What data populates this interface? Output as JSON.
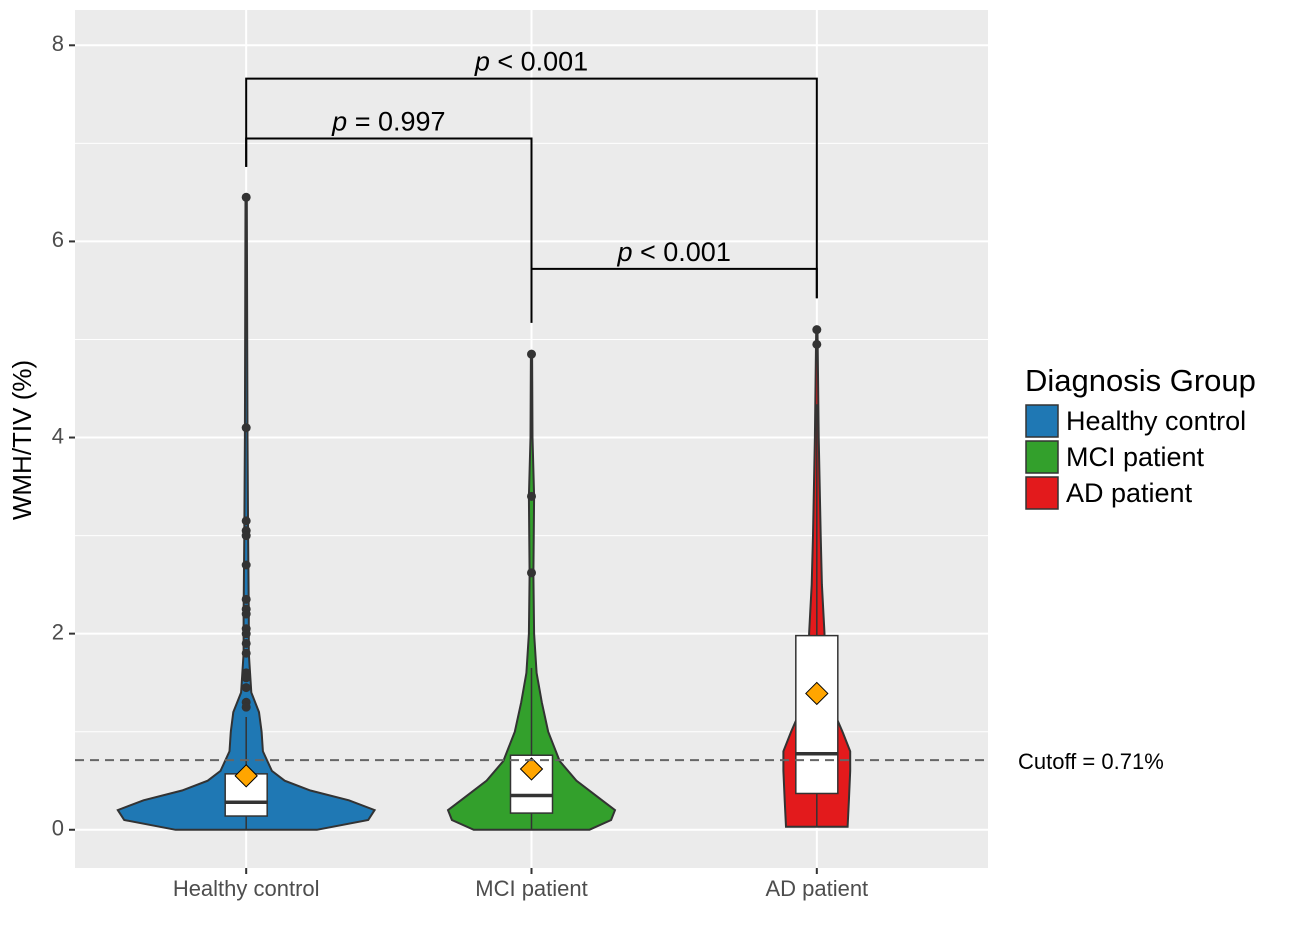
{
  "chart_data": {
    "type": "violin",
    "y_label": "WMH/TIV (%)",
    "legend_title": "Diagnosis Group",
    "legend_position": "right",
    "grid": true,
    "categories": [
      "Healthy control",
      "MCI patient",
      "AD patient"
    ],
    "ylim": [
      -0.39,
      8.36
    ],
    "yticks": [
      0,
      2,
      4,
      6,
      8
    ],
    "minor_yticks": [
      1,
      3,
      5,
      7
    ],
    "mean_color": "#ffa500",
    "series": [
      {
        "name": "Healthy control",
        "color": "#1f78b4",
        "violin": {
          "y": [
            0,
            0.1,
            0.2,
            0.3,
            0.4,
            0.5,
            0.6,
            0.8,
            1.0,
            1.2,
            1.4,
            1.8,
            2.2,
            3.0,
            4.0,
            6.45
          ],
          "width": [
            0.55,
            0.95,
            1.0,
            0.8,
            0.5,
            0.3,
            0.2,
            0.13,
            0.12,
            0.1,
            0.04,
            0.02,
            0.02,
            0.015,
            0.01,
            0.005
          ]
        },
        "box": {
          "whisker_low": 0,
          "q1": 0.14,
          "median": 0.28,
          "q3": 0.57,
          "whisker_high": 1.15
        },
        "mean": 0.55,
        "outliers": [
          6.45,
          4.1,
          3.15,
          3.05,
          3.0,
          2.7,
          2.35,
          2.25,
          2.2,
          2.05,
          2.0,
          1.9,
          1.8,
          1.6,
          1.55,
          1.45,
          1.3,
          1.25
        ]
      },
      {
        "name": "MCI patient",
        "color": "#33a02c",
        "violin": {
          "y": [
            0,
            0.1,
            0.2,
            0.3,
            0.5,
            0.7,
            1.0,
            1.3,
            1.6,
            2.0,
            2.6,
            3.4,
            4.0,
            4.85
          ],
          "width": [
            0.45,
            0.62,
            0.65,
            0.55,
            0.35,
            0.22,
            0.13,
            0.08,
            0.04,
            0.02,
            0.015,
            0.02,
            0.008,
            0.005
          ]
        },
        "box": {
          "whisker_low": 0,
          "q1": 0.17,
          "median": 0.35,
          "q3": 0.76,
          "whisker_high": 1.65
        },
        "mean": 0.62,
        "outliers": [
          4.85,
          3.4,
          2.62
        ]
      },
      {
        "name": "AD patient",
        "color": "#e31a1c",
        "violin": {
          "y": [
            0.03,
            0.3,
            0.6,
            0.8,
            1.0,
            1.3,
            1.6,
            2.0,
            2.5,
            3.0,
            4.0,
            5.1
          ],
          "width": [
            0.24,
            0.25,
            0.26,
            0.26,
            0.2,
            0.1,
            0.06,
            0.06,
            0.04,
            0.03,
            0.015,
            0.005
          ]
        },
        "box": {
          "whisker_low": 0.03,
          "q1": 0.37,
          "median": 0.775,
          "q3": 1.98,
          "whisker_high": 4.34
        },
        "mean": 1.39,
        "outliers": [
          5.1,
          4.95
        ]
      }
    ],
    "hline": {
      "value": 0.71,
      "label": "Cutoff = 0.71%"
    },
    "comparisons": [
      {
        "from": 0,
        "to": 2,
        "y": 7.66,
        "tips": [
          6.76,
          5.42
        ],
        "label": "p < 0.001"
      },
      {
        "from": 0,
        "to": 1,
        "y": 7.05,
        "tips": [
          6.76,
          5.17
        ],
        "label": "p = 0.997"
      },
      {
        "from": 1,
        "to": 2,
        "y": 5.72,
        "tips": [
          5.17,
          5.42
        ],
        "label": "p < 0.001"
      }
    ]
  }
}
